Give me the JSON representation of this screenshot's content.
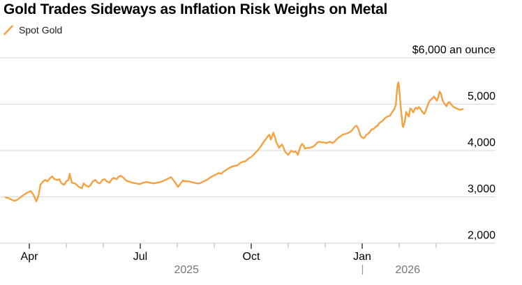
{
  "chart_data": {
    "type": "line",
    "title": "Gold Trades Sideways as Inflation Risk Weighs on Metal",
    "unit_label": "$6,000 an ounce",
    "legend_position": "top-left",
    "grid": "horizontal-only",
    "colors": {
      "line": "#F5A142",
      "grid": "#D7D7D7",
      "axis": "#CFCFCF",
      "major_tick": "#2B2B2B",
      "minor_tick": "#B5B5B5",
      "text": "#000000",
      "year_text": "#767676",
      "year_divider": "#9A9A9A"
    },
    "y_axis": {
      "ylim": [
        2000,
        6000
      ],
      "gridlines": [
        6000,
        5000,
        4000,
        3000,
        2000
      ],
      "tick_labels": {
        "6000": "$6,000 an ounce",
        "5000": "5,000",
        "4000": "4,000",
        "3000": "3,000",
        "2000": "2,000"
      }
    },
    "x_axis": {
      "unit": "months (1 = Feb 2025, 3 = Apr 2025, 12 = Jan 2026)",
      "xlim_months": [
        2.2,
        15.55
      ],
      "ticks": [
        {
          "m": 3,
          "label": "Apr"
        },
        {
          "m": 4
        },
        {
          "m": 5
        },
        {
          "m": 6,
          "label": "Jul"
        },
        {
          "m": 7
        },
        {
          "m": 8
        },
        {
          "m": 9,
          "label": "Oct"
        },
        {
          "m": 10
        },
        {
          "m": 11
        },
        {
          "m": 12,
          "label": "Jan"
        },
        {
          "m": 13
        },
        {
          "m": 14
        }
      ],
      "year_labels": [
        {
          "label": "2025",
          "m": 7.25
        },
        {
          "label": "2026",
          "m": 13.23
        }
      ],
      "year_divider_m": 12
    },
    "series": [
      {
        "name": "Spot Gold",
        "color": "#F5A142",
        "points": [
          [
            2.36,
            2990
          ],
          [
            2.43,
            2975
          ],
          [
            2.51,
            2945
          ],
          [
            2.59,
            2915
          ],
          [
            2.66,
            2930
          ],
          [
            2.74,
            2975
          ],
          [
            2.81,
            3020
          ],
          [
            2.89,
            3065
          ],
          [
            2.96,
            3095
          ],
          [
            3.04,
            3125
          ],
          [
            3.11,
            3050
          ],
          [
            3.19,
            2900
          ],
          [
            3.25,
            3035
          ],
          [
            3.3,
            3260
          ],
          [
            3.38,
            3335
          ],
          [
            3.43,
            3365
          ],
          [
            3.49,
            3335
          ],
          [
            3.57,
            3410
          ],
          [
            3.62,
            3440
          ],
          [
            3.68,
            3380
          ],
          [
            3.76,
            3365
          ],
          [
            3.81,
            3380
          ],
          [
            3.87,
            3290
          ],
          [
            3.94,
            3260
          ],
          [
            4.0,
            3335
          ],
          [
            4.06,
            3365
          ],
          [
            4.09,
            3500
          ],
          [
            4.15,
            3305
          ],
          [
            4.23,
            3290
          ],
          [
            4.28,
            3260
          ],
          [
            4.34,
            3215
          ],
          [
            4.42,
            3185
          ],
          [
            4.47,
            3290
          ],
          [
            4.53,
            3245
          ],
          [
            4.6,
            3215
          ],
          [
            4.66,
            3260
          ],
          [
            4.72,
            3335
          ],
          [
            4.79,
            3365
          ],
          [
            4.85,
            3305
          ],
          [
            4.91,
            3290
          ],
          [
            4.98,
            3365
          ],
          [
            5.04,
            3380
          ],
          [
            5.09,
            3335
          ],
          [
            5.17,
            3305
          ],
          [
            5.23,
            3380
          ],
          [
            5.28,
            3410
          ],
          [
            5.36,
            3380
          ],
          [
            5.42,
            3440
          ],
          [
            5.47,
            3455
          ],
          [
            5.55,
            3410
          ],
          [
            5.6,
            3365
          ],
          [
            5.66,
            3335
          ],
          [
            5.74,
            3320
          ],
          [
            5.79,
            3305
          ],
          [
            5.89,
            3290
          ],
          [
            5.98,
            3275
          ],
          [
            6.08,
            3305
          ],
          [
            6.17,
            3320
          ],
          [
            6.26,
            3305
          ],
          [
            6.36,
            3290
          ],
          [
            6.45,
            3305
          ],
          [
            6.55,
            3320
          ],
          [
            6.6,
            3335
          ],
          [
            6.68,
            3365
          ],
          [
            6.76,
            3395
          ],
          [
            6.83,
            3425
          ],
          [
            6.89,
            3365
          ],
          [
            6.96,
            3290
          ],
          [
            7.02,
            3215
          ],
          [
            7.08,
            3275
          ],
          [
            7.15,
            3350
          ],
          [
            7.23,
            3335
          ],
          [
            7.3,
            3335
          ],
          [
            7.38,
            3320
          ],
          [
            7.45,
            3305
          ],
          [
            7.53,
            3290
          ],
          [
            7.6,
            3290
          ],
          [
            7.68,
            3320
          ],
          [
            7.76,
            3350
          ],
          [
            7.83,
            3380
          ],
          [
            7.91,
            3425
          ],
          [
            7.98,
            3455
          ],
          [
            8.06,
            3485
          ],
          [
            8.11,
            3515
          ],
          [
            8.19,
            3500
          ],
          [
            8.25,
            3545
          ],
          [
            8.34,
            3590
          ],
          [
            8.43,
            3635
          ],
          [
            8.53,
            3665
          ],
          [
            8.62,
            3680
          ],
          [
            8.72,
            3740
          ],
          [
            8.77,
            3755
          ],
          [
            8.85,
            3770
          ],
          [
            8.91,
            3815
          ],
          [
            8.96,
            3845
          ],
          [
            9.0,
            3860
          ],
          [
            9.06,
            3905
          ],
          [
            9.11,
            3950
          ],
          [
            9.17,
            3995
          ],
          [
            9.23,
            4055
          ],
          [
            9.28,
            4115
          ],
          [
            9.34,
            4190
          ],
          [
            9.4,
            4250
          ],
          [
            9.45,
            4310
          ],
          [
            9.49,
            4340
          ],
          [
            9.53,
            4235
          ],
          [
            9.57,
            4325
          ],
          [
            9.6,
            4385
          ],
          [
            9.64,
            4295
          ],
          [
            9.68,
            4175
          ],
          [
            9.72,
            4115
          ],
          [
            9.75,
            4055
          ],
          [
            9.79,
            4100
          ],
          [
            9.83,
            4130
          ],
          [
            9.87,
            4070
          ],
          [
            9.91,
            3980
          ],
          [
            9.96,
            3935
          ],
          [
            10.0,
            3905
          ],
          [
            10.04,
            3950
          ],
          [
            10.08,
            3995
          ],
          [
            10.11,
            3980
          ],
          [
            10.15,
            3965
          ],
          [
            10.19,
            3980
          ],
          [
            10.23,
            3950
          ],
          [
            10.26,
            3905
          ],
          [
            10.3,
            4010
          ],
          [
            10.34,
            4100
          ],
          [
            10.38,
            4145
          ],
          [
            10.42,
            4100
          ],
          [
            10.45,
            4040
          ],
          [
            10.51,
            4055
          ],
          [
            10.57,
            4055
          ],
          [
            10.62,
            4070
          ],
          [
            10.68,
            4085
          ],
          [
            10.74,
            4130
          ],
          [
            10.79,
            4175
          ],
          [
            10.85,
            4190
          ],
          [
            10.91,
            4175
          ],
          [
            10.96,
            4175
          ],
          [
            11.02,
            4160
          ],
          [
            11.08,
            4175
          ],
          [
            11.13,
            4190
          ],
          [
            11.19,
            4160
          ],
          [
            11.25,
            4190
          ],
          [
            11.3,
            4235
          ],
          [
            11.36,
            4280
          ],
          [
            11.42,
            4310
          ],
          [
            11.47,
            4340
          ],
          [
            11.53,
            4355
          ],
          [
            11.59,
            4370
          ],
          [
            11.64,
            4385
          ],
          [
            11.7,
            4415
          ],
          [
            11.76,
            4475
          ],
          [
            11.81,
            4520
          ],
          [
            11.85,
            4535
          ],
          [
            11.89,
            4475
          ],
          [
            11.93,
            4385
          ],
          [
            11.96,
            4310
          ],
          [
            12.0,
            4280
          ],
          [
            12.04,
            4265
          ],
          [
            12.08,
            4295
          ],
          [
            12.11,
            4340
          ],
          [
            12.15,
            4355
          ],
          [
            12.19,
            4385
          ],
          [
            12.23,
            4430
          ],
          [
            12.26,
            4460
          ],
          [
            12.3,
            4460
          ],
          [
            12.34,
            4490
          ],
          [
            12.38,
            4520
          ],
          [
            12.42,
            4535
          ],
          [
            12.45,
            4580
          ],
          [
            12.49,
            4610
          ],
          [
            12.53,
            4625
          ],
          [
            12.57,
            4655
          ],
          [
            12.6,
            4685
          ],
          [
            12.64,
            4715
          ],
          [
            12.68,
            4730
          ],
          [
            12.72,
            4745
          ],
          [
            12.76,
            4760
          ],
          [
            12.79,
            4805
          ],
          [
            12.83,
            4850
          ],
          [
            12.87,
            4895
          ],
          [
            12.91,
            4985
          ],
          [
            12.94,
            5290
          ],
          [
            12.96,
            5425
          ],
          [
            12.98,
            5470
          ],
          [
            13.0,
            5350
          ],
          [
            13.02,
            5140
          ],
          [
            13.04,
            4960
          ],
          [
            13.06,
            4790
          ],
          [
            13.08,
            4655
          ],
          [
            13.09,
            4535
          ],
          [
            13.11,
            4505
          ],
          [
            13.15,
            4625
          ],
          [
            13.19,
            4835
          ],
          [
            13.23,
            4775
          ],
          [
            13.26,
            4730
          ],
          [
            13.3,
            4910
          ],
          [
            13.34,
            4880
          ],
          [
            13.38,
            4820
          ],
          [
            13.42,
            4895
          ],
          [
            13.45,
            4925
          ],
          [
            13.49,
            4895
          ],
          [
            13.53,
            4940
          ],
          [
            13.57,
            4910
          ],
          [
            13.6,
            4865
          ],
          [
            13.64,
            4820
          ],
          [
            13.68,
            4790
          ],
          [
            13.72,
            4865
          ],
          [
            13.76,
            4955
          ],
          [
            13.79,
            5015
          ],
          [
            13.83,
            5075
          ],
          [
            13.87,
            5105
          ],
          [
            13.91,
            5135
          ],
          [
            13.94,
            5165
          ],
          [
            13.98,
            5120
          ],
          [
            14.02,
            5075
          ],
          [
            14.06,
            5165
          ],
          [
            14.09,
            5270
          ],
          [
            14.13,
            5225
          ],
          [
            14.17,
            5090
          ],
          [
            14.21,
            5030
          ],
          [
            14.25,
            4985
          ],
          [
            14.28,
            4955
          ],
          [
            14.32,
            5030
          ],
          [
            14.36,
            5045
          ],
          [
            14.4,
            5000
          ],
          [
            14.43,
            4970
          ],
          [
            14.47,
            4940
          ],
          [
            14.51,
            4925
          ],
          [
            14.55,
            4910
          ],
          [
            14.59,
            4895
          ],
          [
            14.62,
            4880
          ],
          [
            14.66,
            4880
          ],
          [
            14.72,
            4895
          ]
        ]
      }
    ]
  }
}
